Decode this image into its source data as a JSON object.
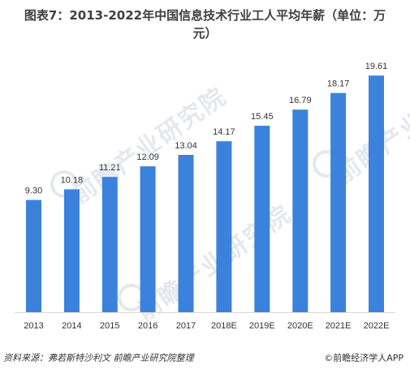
{
  "title_line1": "图表7：2013-2022年中国信息技术行业工人平均年薪（单位：万",
  "title_line2": "元）",
  "watermark_text": "前瞻产业研究院",
  "source": "资料来源：弗若斯特沙利文 前瞻产业研究院整理",
  "brand": "前瞻经济学人APP",
  "colors": {
    "bar": "#3b82dc",
    "axis": "#d9d9d9"
  },
  "chart_data": {
    "type": "bar",
    "title": "图表7：2013-2022年中国信息技术行业工人平均年薪（单位：万元）",
    "categories": [
      "2013",
      "2014",
      "2015",
      "2016",
      "2017",
      "2018E",
      "2019E",
      "2020E",
      "2021E",
      "2022E"
    ],
    "values": [
      9.3,
      10.18,
      11.21,
      12.09,
      13.04,
      14.17,
      15.45,
      16.79,
      18.17,
      19.61
    ],
    "value_labels": [
      "9.30",
      "10.18",
      "11.21",
      "12.09",
      "13.04",
      "14.17",
      "15.45",
      "16.79",
      "18.17",
      "19.61"
    ],
    "ylim": [
      0,
      20.5
    ],
    "grid": false,
    "legend": "none"
  }
}
